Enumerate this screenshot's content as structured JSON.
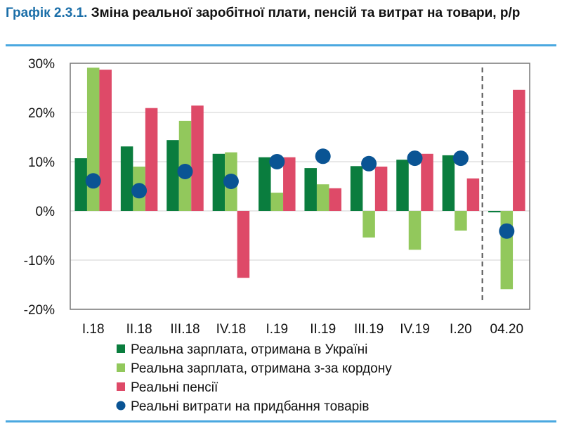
{
  "title_number": "Графік 2.3.1.",
  "title_text": "Зміна реальної заробітної плати, пенсій та витрат на товари, р/р",
  "chart_data": {
    "type": "bar",
    "title": "Графік 2.3.1. Зміна реальної заробітної плати, пенсій та витрат на товари, р/р",
    "categories": [
      "I.18",
      "II.18",
      "III.18",
      "IV.18",
      "I.19",
      "II.19",
      "III.19",
      "IV.19",
      "I.20",
      "04.20"
    ],
    "ylim": [
      -20,
      30
    ],
    "yticks": [
      30,
      20,
      10,
      0,
      -10,
      -20
    ],
    "ytick_labels": [
      "30%",
      "20%",
      "10%",
      "0%",
      "-10%",
      "-20%"
    ],
    "grid": true,
    "legend_placement": "bottom",
    "series": [
      {
        "name": "Реальна зарплата, отримана в Україні",
        "kind": "bar",
        "color": "#0a7d3e",
        "values": [
          10.7,
          13.1,
          14.4,
          11.6,
          10.9,
          8.7,
          9.1,
          10.4,
          11.3,
          -0.3
        ]
      },
      {
        "name": "Реальна зарплата, отримана з-за кордону",
        "kind": "bar",
        "color": "#92c85c",
        "values": [
          29.1,
          9.0,
          18.3,
          11.9,
          3.7,
          5.4,
          -5.4,
          -7.9,
          -4.0,
          -15.9
        ]
      },
      {
        "name": "Реальні пенсії",
        "kind": "bar",
        "color": "#de4a68",
        "values": [
          28.7,
          20.9,
          21.4,
          -13.6,
          10.9,
          4.6,
          9.0,
          11.6,
          6.6,
          24.6
        ]
      },
      {
        "name": "Реальні витрати на придбання товарів",
        "kind": "marker",
        "color": "#0a5494",
        "values": [
          6.1,
          4.1,
          8.0,
          6.0,
          10.0,
          11.1,
          9.6,
          10.7,
          10.7,
          -4.1
        ]
      }
    ]
  }
}
